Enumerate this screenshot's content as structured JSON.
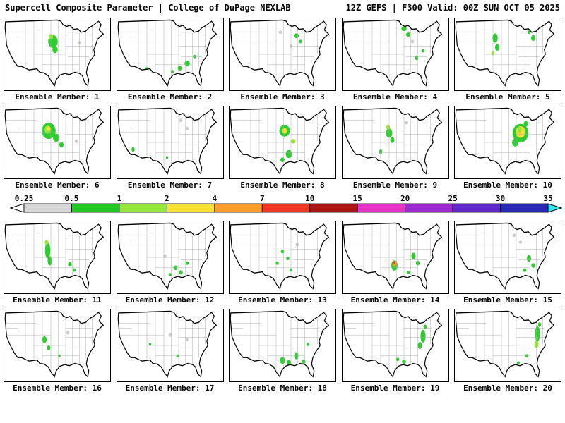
{
  "header": {
    "left": "Supercell Composite Parameter | College of DuPage NEXLAB",
    "right": "12Z GEFS | F300 Valid: 00Z SUN OCT 05 2025"
  },
  "colorbar": {
    "ticks": [
      "0.25",
      "0.5",
      "1",
      "2",
      "4",
      "7",
      "10",
      "15",
      "20",
      "25",
      "30",
      "35"
    ],
    "segments": [
      "#d7d7d7",
      "#22c822",
      "#96e63c",
      "#f5e132",
      "#ff9b28",
      "#f03723",
      "#aa1414",
      "#e632c8",
      "#a028d2",
      "#5f28c8",
      "#2828b4"
    ],
    "left_arrow": "#ffffff",
    "right_arrow": "#32e6e6"
  },
  "blob_colors": {
    "g": "#2ecc2e",
    "lg": "#9ce63c",
    "y": "#f5e132",
    "o": "#ff9b28",
    "r": "#f03723",
    "gy": "#cdcdcd"
  },
  "members": [
    {
      "label": "Ensemble Member: 1",
      "blobs": [
        [
          46,
          20,
          4.5,
          5.5,
          "g"
        ],
        [
          48,
          27,
          2.5,
          3,
          "g"
        ],
        [
          44,
          16,
          2,
          2.5,
          "lg"
        ],
        [
          71,
          21,
          1.5,
          1.5,
          "gy"
        ]
      ]
    },
    {
      "label": "Ensemble Member: 2",
      "blobs": [
        [
          28,
          44,
          2,
          2,
          "g"
        ],
        [
          59,
          43,
          2,
          2,
          "g"
        ],
        [
          66,
          39,
          2.5,
          2.5,
          "g"
        ],
        [
          73,
          33,
          1.5,
          1.5,
          "g"
        ],
        [
          52,
          46,
          1.5,
          1.5,
          "g"
        ]
      ]
    },
    {
      "label": "Ensemble Member: 3",
      "blobs": [
        [
          63,
          15,
          2.5,
          2,
          "g"
        ],
        [
          67,
          20,
          1.5,
          1.5,
          "g"
        ],
        [
          58,
          24,
          1.5,
          1.5,
          "gy"
        ],
        [
          48,
          12,
          1.5,
          1.5,
          "gy"
        ]
      ]
    },
    {
      "label": "Ensemble Member: 4",
      "blobs": [
        [
          58,
          9,
          2.5,
          2,
          "g"
        ],
        [
          62,
          14,
          2,
          2,
          "g"
        ],
        [
          66,
          20,
          1.5,
          1.5,
          "gy"
        ],
        [
          70,
          34,
          1.5,
          2,
          "g"
        ],
        [
          76,
          28,
          1.5,
          1.5,
          "g"
        ]
      ]
    },
    {
      "label": "Ensemble Member: 5",
      "blobs": [
        [
          38,
          17,
          2.5,
          4,
          "g"
        ],
        [
          40,
          25,
          2,
          3,
          "g"
        ],
        [
          36,
          30,
          1.5,
          2,
          "lg"
        ],
        [
          74,
          17,
          2,
          2.5,
          "g"
        ],
        [
          70,
          12,
          1.5,
          1.5,
          "g"
        ]
      ]
    },
    {
      "label": "Ensemble Member: 6",
      "blobs": [
        [
          42,
          21,
          6.5,
          7,
          "g"
        ],
        [
          41,
          20,
          3,
          3.5,
          "lg"
        ],
        [
          42,
          19,
          1.5,
          1.8,
          "y"
        ],
        [
          49,
          27,
          3,
          3.5,
          "g"
        ],
        [
          54,
          33,
          2,
          2.5,
          "g"
        ],
        [
          68,
          30,
          1.5,
          1.5,
          "gy"
        ]
      ]
    },
    {
      "label": "Ensemble Member: 7",
      "blobs": [
        [
          15,
          37,
          1.5,
          2,
          "g"
        ],
        [
          60,
          12,
          1.5,
          1.5,
          "gy"
        ],
        [
          66,
          19,
          1.5,
          1.5,
          "gy"
        ],
        [
          47,
          44,
          1.2,
          1.2,
          "g"
        ]
      ]
    },
    {
      "label": "Ensemble Member: 8",
      "blobs": [
        [
          52,
          21,
          5,
          5,
          "g"
        ],
        [
          52,
          21,
          2.2,
          2.4,
          "y"
        ],
        [
          56,
          41,
          3,
          3.5,
          "g"
        ],
        [
          50,
          46,
          2,
          2,
          "g"
        ],
        [
          60,
          30,
          2,
          2,
          "lg"
        ]
      ]
    },
    {
      "label": "Ensemble Member: 9",
      "blobs": [
        [
          44,
          23,
          3,
          4,
          "g"
        ],
        [
          47,
          29,
          2,
          2.5,
          "g"
        ],
        [
          43,
          18,
          1.8,
          2,
          "lg"
        ],
        [
          60,
          14,
          1.5,
          1.5,
          "gy"
        ],
        [
          36,
          39,
          1.5,
          2,
          "g"
        ]
      ]
    },
    {
      "label": "Ensemble Member: 10",
      "blobs": [
        [
          62,
          23,
          7.5,
          8,
          "g"
        ],
        [
          62,
          22,
          4.5,
          5,
          "y"
        ],
        [
          61,
          20,
          2,
          2.5,
          "lg"
        ],
        [
          57,
          31,
          3,
          3.5,
          "g"
        ],
        [
          67,
          15,
          2,
          2.5,
          "g"
        ]
      ]
    },
    {
      "label": "Ensemble Member: 11",
      "blobs": [
        [
          41,
          25,
          2.5,
          7,
          "g"
        ],
        [
          43,
          34,
          2,
          4,
          "g"
        ],
        [
          40,
          18,
          1.8,
          2,
          "lg"
        ],
        [
          62,
          37,
          1.8,
          2,
          "g"
        ],
        [
          66,
          42,
          1.5,
          1.5,
          "g"
        ]
      ]
    },
    {
      "label": "Ensemble Member: 12",
      "blobs": [
        [
          55,
          40,
          2,
          2,
          "g"
        ],
        [
          60,
          44,
          1.8,
          1.8,
          "g"
        ],
        [
          50,
          46,
          1.5,
          1.5,
          "g"
        ],
        [
          66,
          36,
          1.5,
          1.5,
          "g"
        ],
        [
          45,
          30,
          1.5,
          1.5,
          "gy"
        ]
      ]
    },
    {
      "label": "Ensemble Member: 13",
      "blobs": [
        [
          50,
          26,
          1.6,
          1.6,
          "g"
        ],
        [
          55,
          32,
          1.5,
          1.5,
          "g"
        ],
        [
          45,
          36,
          1.5,
          1.5,
          "g"
        ],
        [
          64,
          20,
          1.6,
          1.6,
          "gy"
        ],
        [
          58,
          42,
          1.3,
          1.3,
          "g"
        ]
      ]
    },
    {
      "label": "Ensemble Member: 14",
      "blobs": [
        [
          49,
          38,
          3,
          4.5,
          "g"
        ],
        [
          49,
          36.5,
          1.8,
          2.6,
          "o"
        ],
        [
          49,
          35.5,
          0.9,
          1.2,
          "r"
        ],
        [
          67,
          30,
          2,
          3,
          "g"
        ],
        [
          71,
          36,
          1.8,
          2,
          "g"
        ],
        [
          62,
          44,
          1.5,
          1.5,
          "g"
        ]
      ]
    },
    {
      "label": "Ensemble Member: 15",
      "blobs": [
        [
          70,
          32,
          2,
          3,
          "g"
        ],
        [
          74,
          38,
          1.8,
          2,
          "g"
        ],
        [
          66,
          42,
          1.6,
          1.6,
          "g"
        ],
        [
          56,
          12,
          1.6,
          1.6,
          "gy"
        ],
        [
          62,
          18,
          1.4,
          1.4,
          "gy"
        ]
      ]
    },
    {
      "label": "Ensemble Member: 16",
      "blobs": [
        [
          38,
          26,
          2,
          3,
          "g"
        ],
        [
          42,
          33,
          1.6,
          2,
          "g"
        ],
        [
          60,
          20,
          1.6,
          1.6,
          "gy"
        ],
        [
          52,
          40,
          1.3,
          1.3,
          "g"
        ]
      ]
    },
    {
      "label": "Ensemble Member: 17",
      "blobs": [
        [
          50,
          22,
          1.6,
          1.6,
          "gy"
        ],
        [
          57,
          40,
          1.3,
          1.3,
          "g"
        ],
        [
          31,
          30,
          1.2,
          1.2,
          "g"
        ],
        [
          66,
          26,
          1.3,
          1.3,
          "gy"
        ]
      ]
    },
    {
      "label": "Ensemble Member: 18",
      "blobs": [
        [
          50,
          44,
          2.4,
          3,
          "g"
        ],
        [
          56,
          46,
          2,
          2.4,
          "g"
        ],
        [
          63,
          40,
          2,
          3,
          "g"
        ],
        [
          70,
          45,
          1.8,
          2,
          "g"
        ],
        [
          41,
          50,
          1.5,
          1.5,
          "g"
        ],
        [
          74,
          30,
          1.5,
          1.5,
          "g"
        ]
      ]
    },
    {
      "label": "Ensemble Member: 19",
      "blobs": [
        [
          76,
          23,
          2.4,
          5.5,
          "g"
        ],
        [
          73,
          31,
          2,
          3,
          "g"
        ],
        [
          58,
          45,
          1.8,
          2,
          "g"
        ],
        [
          52,
          43,
          1.5,
          1.5,
          "g"
        ],
        [
          78,
          15,
          1.5,
          2,
          "g"
        ]
      ]
    },
    {
      "label": "Ensemble Member: 20",
      "blobs": [
        [
          78,
          21,
          2.4,
          6.5,
          "g"
        ],
        [
          77,
          30,
          2,
          3.5,
          "lg"
        ],
        [
          68,
          40,
          1.5,
          1.5,
          "g"
        ],
        [
          80,
          13,
          1.5,
          2,
          "g"
        ],
        [
          60,
          46,
          1.3,
          1.3,
          "g"
        ]
      ]
    }
  ]
}
